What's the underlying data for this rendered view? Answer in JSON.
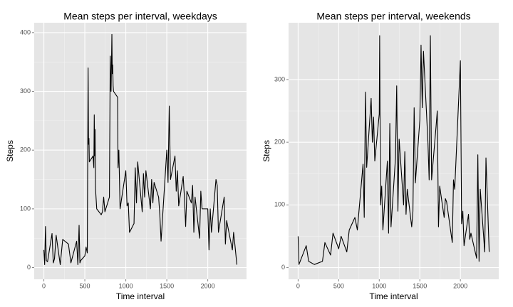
{
  "chart_data": [
    {
      "type": "line",
      "title": "Mean steps per interval, weekdays",
      "xlabel": "Time interval",
      "ylabel": "Steps",
      "xlim": [
        -117.75,
        2472.75
      ],
      "ylim": [
        -19.9,
        416.8
      ],
      "xticks": [
        0,
        500,
        1000,
        1500,
        2000
      ],
      "yticks": [
        0,
        100,
        200,
        300,
        400
      ],
      "grid": true,
      "x": [
        0,
        10,
        20,
        30,
        45,
        100,
        115,
        130,
        150,
        200,
        230,
        300,
        330,
        400,
        415,
        430,
        440,
        450,
        500,
        515,
        530,
        540,
        545,
        550,
        555,
        600,
        610,
        615,
        620,
        625,
        630,
        645,
        700,
        715,
        730,
        745,
        800,
        810,
        815,
        820,
        830,
        835,
        840,
        845,
        850,
        900,
        905,
        915,
        930,
        1000,
        1015,
        1030,
        1045,
        1100,
        1115,
        1130,
        1145,
        1200,
        1215,
        1230,
        1245,
        1300,
        1315,
        1330,
        1345,
        1400,
        1415,
        1430,
        1500,
        1515,
        1530,
        1545,
        1600,
        1615,
        1630,
        1645,
        1700,
        1715,
        1730,
        1745,
        1800,
        1815,
        1830,
        1845,
        1900,
        1915,
        1930,
        2000,
        2015,
        2030,
        2045,
        2100,
        2115,
        2130,
        2200,
        2215,
        2230,
        2300,
        2315,
        2330,
        2355
      ],
      "series": [
        {
          "color": "#000000",
          "values": [
            30,
            5,
            70,
            12,
            10,
            58,
            8,
            15,
            55,
            5,
            48,
            40,
            8,
            45,
            5,
            72,
            8,
            12,
            20,
            35,
            25,
            340,
            210,
            220,
            180,
            190,
            170,
            260,
            190,
            235,
            135,
            100,
            90,
            95,
            120,
            95,
            120,
            360,
            310,
            300,
            397,
            330,
            345,
            310,
            300,
            290,
            170,
            200,
            100,
            165,
            105,
            110,
            60,
            75,
            170,
            110,
            180,
            95,
            160,
            120,
            165,
            100,
            150,
            110,
            145,
            120,
            90,
            45,
            200,
            145,
            275,
            150,
            190,
            130,
            165,
            105,
            155,
            120,
            70,
            130,
            110,
            140,
            60,
            120,
            50,
            130,
            100,
            100,
            30,
            100,
            60,
            150,
            140,
            60,
            120,
            40,
            80,
            30,
            60,
            40,
            5
          ]
        }
      ]
    },
    {
      "type": "line",
      "title": "Mean steps per interval, weekends",
      "xlabel": "Time interval",
      "ylabel": "Steps",
      "xlim": [
        -117.75,
        2472.75
      ],
      "ylim": [
        -18.6,
        390.6
      ],
      "xticks": [
        0,
        500,
        1000,
        1500,
        2000
      ],
      "yticks": [
        0,
        100,
        200,
        300
      ],
      "grid": true,
      "x": [
        0,
        10,
        100,
        130,
        200,
        300,
        330,
        400,
        430,
        500,
        530,
        600,
        630,
        700,
        730,
        800,
        815,
        830,
        845,
        900,
        915,
        930,
        945,
        1000,
        1005,
        1015,
        1030,
        1045,
        1100,
        1115,
        1130,
        1145,
        1200,
        1215,
        1230,
        1245,
        1300,
        1315,
        1330,
        1345,
        1400,
        1415,
        1430,
        1445,
        1500,
        1515,
        1530,
        1545,
        1600,
        1615,
        1630,
        1645,
        1700,
        1715,
        1730,
        1745,
        1800,
        1815,
        1830,
        1900,
        1915,
        1930,
        2000,
        2015,
        2030,
        2045,
        2100,
        2115,
        2130,
        2200,
        2215,
        2230,
        2245,
        2300,
        2315,
        2355
      ],
      "series": [
        {
          "color": "#000000",
          "values": [
            50,
            5,
            35,
            10,
            5,
            10,
            40,
            20,
            55,
            30,
            50,
            25,
            60,
            80,
            60,
            165,
            80,
            280,
            160,
            270,
            200,
            240,
            170,
            245,
            370,
            100,
            130,
            60,
            170,
            55,
            230,
            65,
            175,
            290,
            90,
            205,
            100,
            185,
            85,
            125,
            65,
            90,
            255,
            135,
            235,
            355,
            255,
            345,
            200,
            140,
            370,
            140,
            225,
            250,
            65,
            130,
            80,
            110,
            105,
            40,
            140,
            125,
            330,
            70,
            90,
            35,
            85,
            45,
            55,
            15,
            180,
            10,
            125,
            25,
            175,
            25
          ]
        }
      ]
    }
  ]
}
